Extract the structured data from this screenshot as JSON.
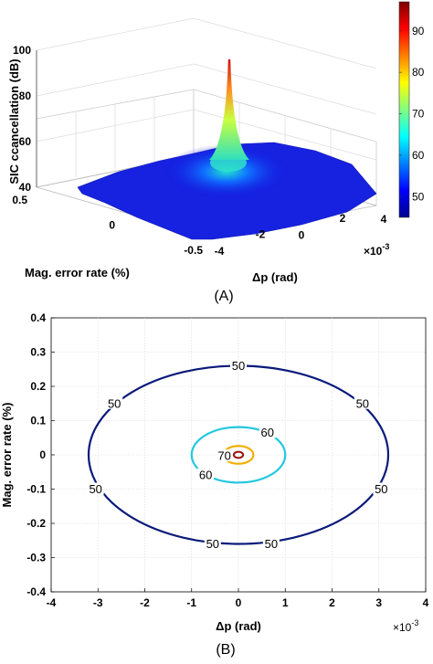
{
  "chart_data": [
    {
      "type": "surface",
      "panel_label": "(A)",
      "zlabel": "SIC ccancellation (dB)",
      "xlabel": "Δp (rad)",
      "ylabel": "Mag. error rate (%)",
      "x_multiplier": "×10",
      "x_multiplier_exp": "-3",
      "zlim": [
        40,
        100
      ],
      "z_ticks": [
        "40",
        "60",
        "80",
        "100"
      ],
      "x_ticks": [
        "-4",
        "-2",
        "0",
        "2",
        "4"
      ],
      "y_ticks": [
        "0.5",
        "0",
        "-0.5"
      ],
      "peak": {
        "x": 0,
        "y": 0,
        "z": 96
      },
      "grid": true,
      "colormap": "jet",
      "colorbar": {
        "ticks": [
          "50",
          "60",
          "70",
          "80",
          "90"
        ],
        "range": [
          45,
          97
        ]
      }
    },
    {
      "type": "contour",
      "panel_label": "(B)",
      "xlabel": "Δp (rad)",
      "ylabel": "Mag. error rate (%)",
      "x_multiplier": "×10",
      "x_multiplier_exp": "-3",
      "xlim": [
        -4,
        4
      ],
      "ylim": [
        -0.4,
        0.4
      ],
      "x_ticks": [
        "-4",
        "-3",
        "-2",
        "-1",
        "0",
        "1",
        "2",
        "3",
        "4"
      ],
      "y_ticks": [
        "0.4",
        "0.3",
        "0.2",
        "0.1",
        "0",
        "-0.1",
        "-0.2",
        "-0.3",
        "-0.4"
      ],
      "grid": true,
      "levels": [
        {
          "level": 50,
          "rx": 3.2,
          "ry": 0.26,
          "color": "#0a1a7a",
          "labels": [
            {
              "text": "50",
              "x": 0,
              "y": 0.26
            },
            {
              "text": "50",
              "x": -2.65,
              "y": 0.15
            },
            {
              "text": "50",
              "x": 2.65,
              "y": 0.15
            },
            {
              "text": "50",
              "x": -3.05,
              "y": -0.1
            },
            {
              "text": "50",
              "x": 3.05,
              "y": -0.1
            },
            {
              "text": "50",
              "x": -0.55,
              "y": -0.26
            },
            {
              "text": "50",
              "x": 0.7,
              "y": -0.26
            }
          ]
        },
        {
          "level": 60,
          "rx": 1.0,
          "ry": 0.081,
          "color": "#22c7e0",
          "labels": [
            {
              "text": "60",
              "x": 0.62,
              "y": 0.065
            },
            {
              "text": "60",
              "x": -0.7,
              "y": -0.058
            }
          ]
        },
        {
          "level": 70,
          "rx": 0.32,
          "ry": 0.026,
          "color": "#f0b000",
          "labels": [
            {
              "text": "70",
              "x": -0.3,
              "y": -0.003
            }
          ]
        },
        {
          "level": 90,
          "rx": 0.1,
          "ry": 0.009,
          "color": "#a01010",
          "labels": []
        }
      ]
    }
  ]
}
